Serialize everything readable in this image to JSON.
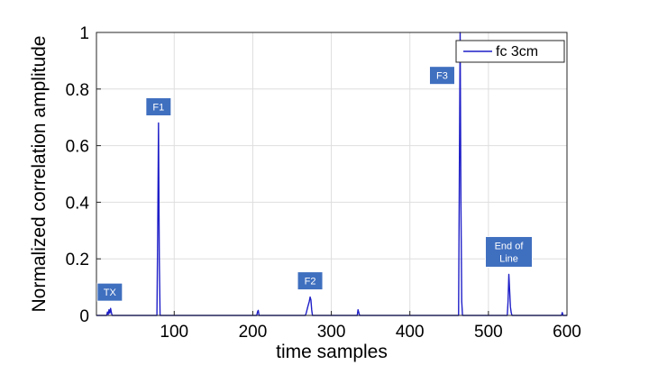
{
  "chart_data": {
    "type": "line",
    "title": "",
    "xlabel": "time samples",
    "ylabel": "Normalized correlation amplitude",
    "xlim": [
      1,
      600
    ],
    "ylim": [
      0,
      1
    ],
    "xticks": [
      100,
      200,
      300,
      400,
      500,
      600
    ],
    "yticks": [
      0,
      0.2,
      0.4,
      0.6,
      0.8,
      1
    ],
    "ytick_labels": [
      "0",
      "0.2",
      "0.4",
      "0.6",
      "0.8",
      "1"
    ],
    "grid": true,
    "legend": {
      "position": "top-right",
      "entries": [
        "fc 3cm"
      ]
    },
    "series": [
      {
        "name": "fc 3cm",
        "color": "#1f1fc8",
        "x": [
          1,
          14,
          15,
          16,
          17,
          18,
          19,
          20,
          21,
          78,
          79,
          80,
          81,
          82,
          205,
          206,
          207,
          208,
          267,
          268,
          270,
          272,
          273,
          274,
          275,
          276,
          333,
          334,
          335,
          336,
          462,
          463,
          464,
          465,
          466,
          467,
          524,
          525,
          526,
          527,
          528,
          529,
          530,
          593,
          594,
          595,
          600
        ],
        "y": [
          0,
          0,
          0.012,
          0.004,
          0.02,
          0.008,
          0.025,
          0.01,
          0,
          0,
          0.3,
          0.68,
          0.2,
          0,
          0,
          0.012,
          0.018,
          0,
          0,
          0.008,
          0.03,
          0.05,
          0.065,
          0.055,
          0.02,
          0,
          0,
          0.02,
          0.01,
          0,
          0,
          0.5,
          1.0,
          0.4,
          0.05,
          0,
          0,
          0.05,
          0.145,
          0.09,
          0.03,
          0.01,
          0,
          0,
          0.01,
          0,
          0
        ]
      }
    ],
    "annotations": [
      {
        "text": "TX",
        "x": 18,
        "y": 0.025
      },
      {
        "text": "F1",
        "x": 80,
        "y": 0.68
      },
      {
        "text": "F2",
        "x": 273,
        "y": 0.065
      },
      {
        "text": "F3",
        "x": 464,
        "y": 0.84
      },
      {
        "text": "End of Line",
        "x": 526,
        "y": 0.145
      }
    ]
  }
}
